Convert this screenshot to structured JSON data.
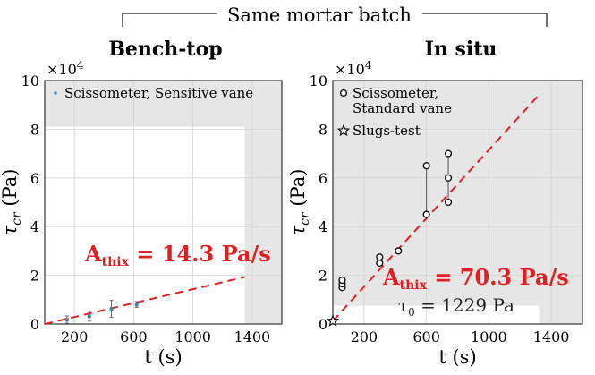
{
  "header": {
    "title": "Same mortar batch"
  },
  "chart_data": [
    {
      "type": "scatter",
      "title": "Bench-top",
      "xlabel": "t (s)",
      "ylabel": "τ_cr (Pa)",
      "y_multiplier": "×10^4",
      "xlim": [
        0,
        1600
      ],
      "ylim": [
        0,
        10
      ],
      "xticks": [
        200,
        600,
        1000,
        1400
      ],
      "yticks": [
        0,
        2,
        4,
        6,
        8,
        10
      ],
      "grid": true,
      "legend_position": "top-left",
      "series": [
        {
          "name": "Scissometer, Sensitive vane",
          "marker": "dot",
          "color": "#4a7fa8",
          "points": [
            {
              "x": 150,
              "y": 0.18,
              "err": 0.15
            },
            {
              "x": 300,
              "y": 0.32,
              "err": 0.2
            },
            {
              "x": 450,
              "y": 0.62,
              "err": 0.35
            },
            {
              "x": 620,
              "y": 0.8,
              "err": 0.12
            }
          ]
        }
      ],
      "fit_line": {
        "slope_per_1e4": 0.00143,
        "intercept": 0.0,
        "x_range": [
          0,
          1350
        ],
        "color": "#e02020"
      },
      "annotations": [
        {
          "text_main": "A",
          "text_sub": "thix",
          "text_value": " = 14.3 Pa/s",
          "color": "#e02020"
        }
      ],
      "shaded_color": "#e6e6e6"
    },
    {
      "type": "scatter",
      "title": "In situ",
      "xlabel": "t (s)",
      "ylabel": "τ_cr (Pa)",
      "y_multiplier": "×10^4",
      "xlim": [
        0,
        1600
      ],
      "ylim": [
        0,
        10
      ],
      "xticks": [
        200,
        600,
        1000,
        1400
      ],
      "yticks": [
        0,
        2,
        4,
        6,
        8,
        10
      ],
      "grid": true,
      "legend_position": "top-left",
      "series": [
        {
          "name": "Scissometer, Standard vane",
          "legend_lines": [
            "Scissometer,",
            "Standard vane"
          ],
          "marker": "circle",
          "color": "#111111",
          "points": [
            {
              "x": 60,
              "y": 1.5
            },
            {
              "x": 60,
              "y": 1.65
            },
            {
              "x": 60,
              "y": 1.8
            },
            {
              "x": 300,
              "y": 2.5
            },
            {
              "x": 300,
              "y": 2.75
            },
            {
              "x": 420,
              "y": 3.0
            },
            {
              "x": 600,
              "y": 4.5
            },
            {
              "x": 600,
              "y": 6.5
            },
            {
              "x": 740,
              "y": 5.0
            },
            {
              "x": 740,
              "y": 6.0
            },
            {
              "x": 740,
              "y": 7.0
            }
          ],
          "ranges": [
            {
              "x": 600,
              "y": [
                4.5,
                6.5
              ]
            },
            {
              "x": 740,
              "y": [
                5.0,
                7.0
              ]
            }
          ]
        },
        {
          "name": "Slugs-test",
          "marker": "star",
          "color": "#111111",
          "points": [
            {
              "x": 0,
              "y": 0.12
            }
          ]
        }
      ],
      "fit_line": {
        "slope_per_1e4": 0.00703,
        "intercept": 0.1229,
        "x_range": [
          0,
          1320
        ],
        "color": "#e02020"
      },
      "annotations": [
        {
          "text_main": "A",
          "text_sub": "thix",
          "text_value": " = 70.3 Pa/s",
          "color": "#e02020"
        },
        {
          "text_main": "τ",
          "text_sub": "0",
          "text_value": " = 1229 Pa",
          "color": "#222222"
        }
      ],
      "shaded_color": "#e6e6e6"
    }
  ]
}
